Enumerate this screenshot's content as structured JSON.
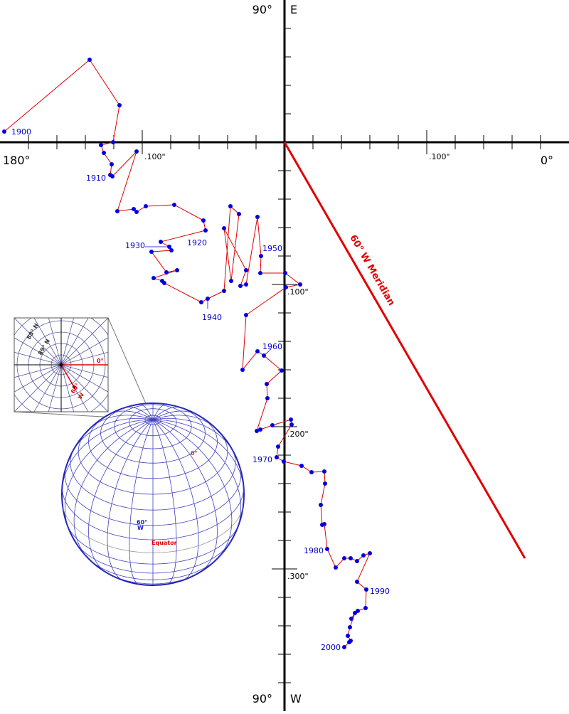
{
  "chart_data": {
    "type": "line",
    "axis_labels": {
      "top": [
        "90°",
        "E"
      ],
      "bottom": [
        "90°",
        "W"
      ],
      "left": "180°",
      "right": "0°"
    },
    "xlim": [
      -0.2,
      0.2
    ],
    "ylim": [
      -0.1,
      0.4
    ],
    "y_axis_direction": "down",
    "xticks": [
      {
        "value": -0.1,
        "label": ".100\""
      },
      {
        "value": 0.1,
        "label": ".100\""
      }
    ],
    "yticks": [
      {
        "value": 0.1,
        "label": ".100\""
      },
      {
        "value": 0.2,
        "label": ".200\""
      },
      {
        "value": 0.3,
        "label": ".300\""
      }
    ],
    "x_minor_ticks": [
      -0.18,
      -0.16,
      -0.14,
      -0.12,
      -0.08,
      -0.06,
      -0.04,
      -0.02,
      0.02,
      0.04,
      0.06,
      0.08,
      0.12,
      0.14,
      0.16,
      0.18
    ],
    "y_minor_ticks": [
      -0.08,
      -0.06,
      -0.04,
      -0.02,
      0.02,
      0.04,
      0.06,
      0.08,
      0.12,
      0.14,
      0.16,
      0.18,
      0.22,
      0.24,
      0.26,
      0.28,
      0.32,
      0.34,
      0.36,
      0.38
    ],
    "line_color": "#e00000",
    "point_color": "#0000e0",
    "x": [
      -0.197,
      -0.137,
      -0.116,
      -0.1205,
      -0.129,
      -0.127,
      -0.1215,
      -0.1225,
      -0.121,
      -0.104,
      -0.1175,
      -0.106,
      -0.104,
      -0.0975,
      -0.0775,
      -0.057,
      -0.0555,
      -0.087,
      -0.081,
      -0.0795,
      -0.0935,
      -0.083,
      -0.0755,
      -0.092,
      -0.086,
      -0.0845,
      -0.0585,
      -0.054,
      -0.0425,
      -0.038,
      -0.032,
      -0.0375,
      -0.0425,
      -0.027,
      -0.031,
      -0.027,
      -0.019,
      -0.0165,
      -0.017,
      0.0005,
      0.011,
      0.001,
      -0.027,
      -0.0295,
      -0.019,
      -0.0145,
      -0.002,
      -0.0125,
      -0.012,
      -0.0195,
      -0.017,
      -0.0085,
      0.0045,
      0.005,
      -0.0045,
      -0.0055,
      -0.0005,
      0.012,
      0.019,
      0.028,
      0.0285,
      0.0255,
      0.0265,
      0.028,
      0.03,
      0.036,
      0.042,
      0.0465,
      0.051,
      0.0555,
      0.06,
      0.051,
      0.0575,
      0.057,
      0.0515,
      0.047,
      0.0495,
      0.046,
      0.0445,
      0.0465,
      0.0455,
      0.042
    ],
    "y": [
      -0.0075,
      -0.058,
      -0.026,
      0,
      0.002,
      0.0075,
      0.0155,
      0.023,
      0.024,
      0.0065,
      0.0485,
      0.047,
      0.049,
      0.045,
      0.044,
      0.055,
      0.062,
      0.07,
      0.0735,
      0.076,
      0.077,
      0.0915,
      0.09,
      0.0955,
      0.0975,
      0.099,
      0.1125,
      0.11,
      0.1045,
      0.045,
      0.0505,
      0.0975,
      0.0605,
      0.09,
      0.101,
      0.1,
      0.0525,
      0.08,
      0.092,
      0.092,
      0.1,
      0.102,
      0.1215,
      0.16,
      0.147,
      0.15,
      0.1605,
      0.17,
      0.18,
      0.203,
      0.202,
      0.199,
      0.195,
      0.1985,
      0.214,
      0.2215,
      0.2245,
      0.2275,
      0.232,
      0.2315,
      0.24,
      0.255,
      0.269,
      0.2685,
      0.286,
      0.299,
      0.2925,
      0.2925,
      0.2945,
      0.2905,
      0.289,
      0.309,
      0.3145,
      0.3275,
      0.3295,
      0.335,
      0.331,
      0.341,
      0.347,
      0.3505,
      0.3515,
      0.355
    ],
    "labels": [
      "1900",
      null,
      null,
      null,
      null,
      null,
      null,
      "1910",
      null,
      null,
      null,
      null,
      null,
      null,
      null,
      null,
      "1920",
      null,
      "1930",
      null,
      null,
      null,
      null,
      null,
      null,
      null,
      null,
      "1940",
      null,
      null,
      null,
      null,
      null,
      null,
      null,
      null,
      null,
      "1950",
      null,
      null,
      null,
      null,
      null,
      null,
      null,
      "1960",
      null,
      null,
      null,
      null,
      null,
      null,
      null,
      null,
      null,
      "1970",
      null,
      null,
      null,
      null,
      null,
      null,
      null,
      null,
      "1980",
      null,
      null,
      null,
      null,
      null,
      null,
      null,
      "1990",
      null,
      null,
      null,
      null,
      null,
      null,
      null,
      null,
      "2000"
    ],
    "meridian_label": "60° W Meridian",
    "inset_labels": {
      "lat88": "88° N",
      "lat89": "89° N",
      "zero": "0°",
      "sixty_w": [
        "60°",
        "W"
      ]
    },
    "globe_labels": {
      "zero": "0°",
      "sixty_w": [
        "60°",
        "W"
      ],
      "equator": "Equator"
    }
  }
}
